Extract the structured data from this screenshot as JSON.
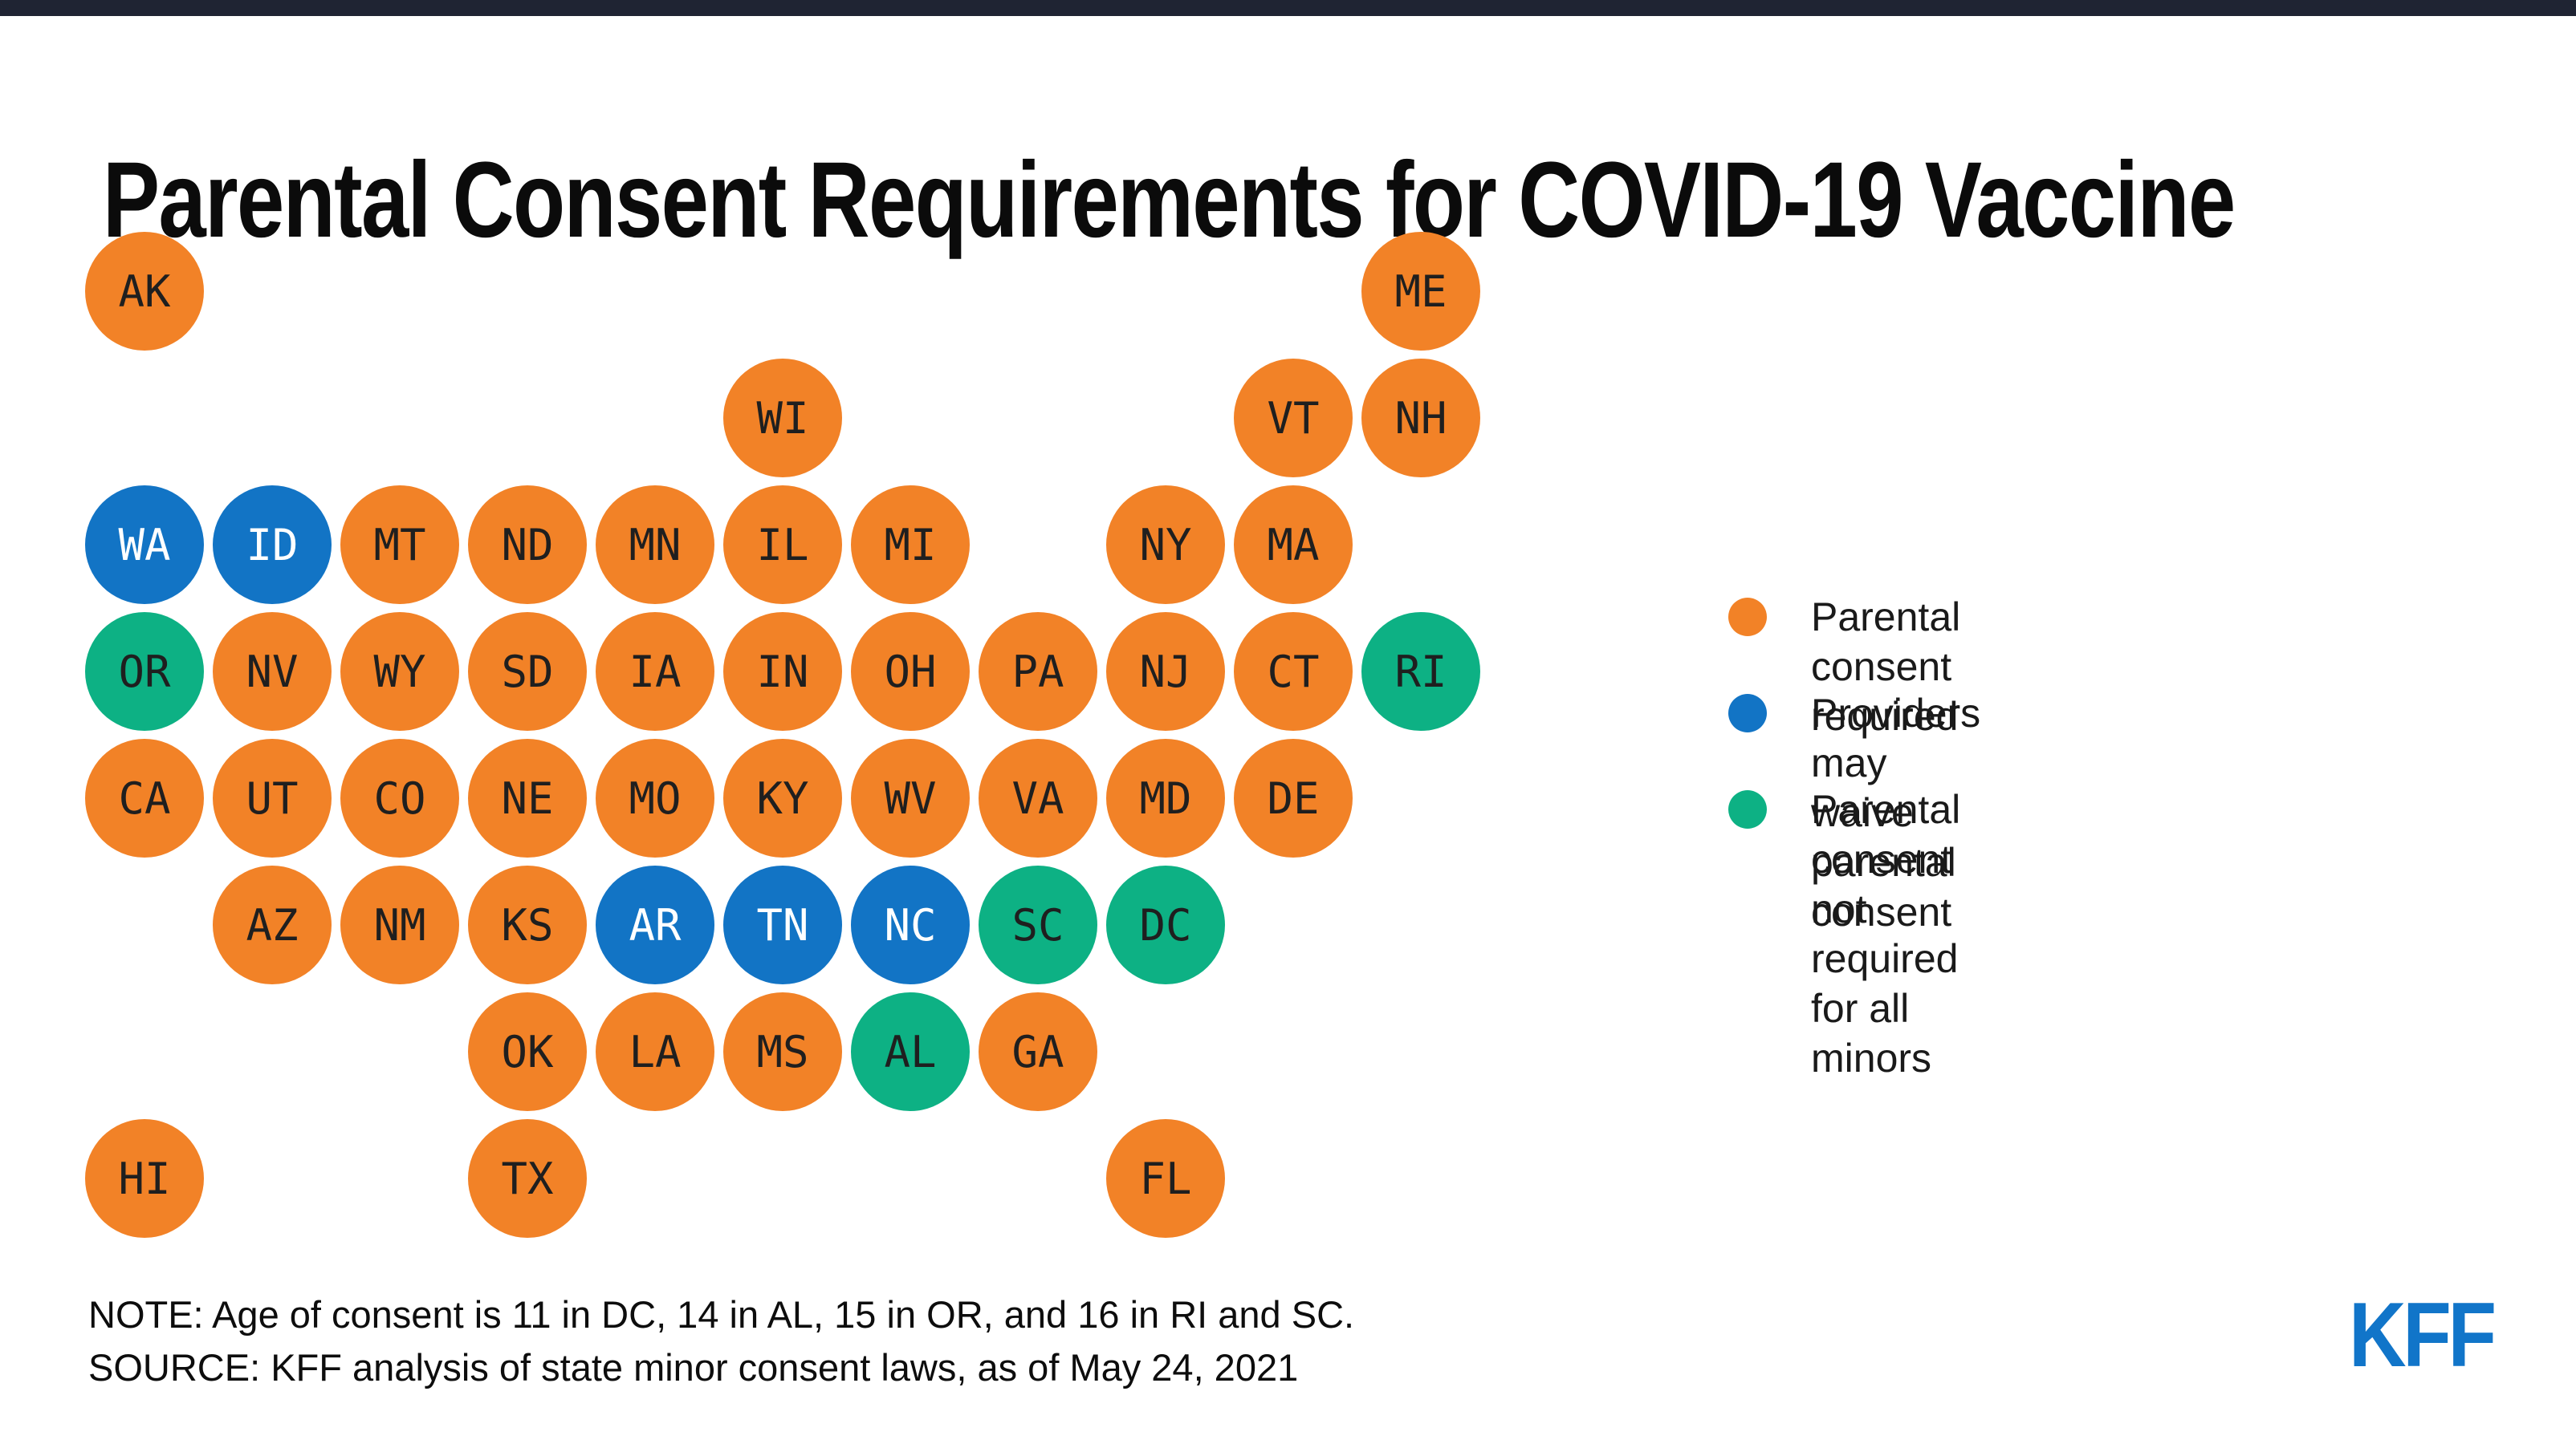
{
  "page": {
    "title": "Parental Consent Requirements for COVID-19 Vaccine"
  },
  "brand": {
    "logo_text": "KFF",
    "logo_color": "#1175C9",
    "top_bar_color": "#1F2433"
  },
  "legend": {
    "items": [
      {
        "label": "Parental consent required",
        "color": "#F28227"
      },
      {
        "label": "Providers may waive parental consent",
        "color": "#1274C5"
      },
      {
        "label": "Parental consent not required\nfor all minors",
        "color": "#0DB184"
      }
    ]
  },
  "notes": {
    "note": "NOTE: Age of consent is 11 in DC, 14 in AL, 15 in OR, and 16 in RI and SC.",
    "source": "SOURCE: KFF analysis of state minor consent laws, as of May 24, 2021"
  },
  "chart_data": {
    "type": "tile_grid_map",
    "title": "Parental Consent Requirements for COVID-19 Vaccine",
    "note": "Age of consent is 11 in DC, 14 in AL, 15 in OR, and 16 in RI and SC.",
    "source": "KFF analysis of state minor consent laws, as of May 24, 2021",
    "legend": [
      {
        "status": "required",
        "label": "Parental consent required"
      },
      {
        "status": "waive",
        "label": "Providers may waive parental consent"
      },
      {
        "status": "not_required",
        "label": "Parental consent not required for all minors"
      }
    ],
    "colors": {
      "required": "#F28227",
      "waive": "#1274C5",
      "not_required": "#0DB184"
    },
    "label_colors": {
      "required": "#1f1f1f",
      "waive": "#ffffff",
      "not_required": "#1f1f1f"
    },
    "states": [
      {
        "abbr": "AK",
        "row": 0,
        "col": 0,
        "status": "required"
      },
      {
        "abbr": "ME",
        "row": 0,
        "col": 10,
        "status": "required"
      },
      {
        "abbr": "WI",
        "row": 1,
        "col": 5,
        "status": "required"
      },
      {
        "abbr": "VT",
        "row": 1,
        "col": 9,
        "status": "required"
      },
      {
        "abbr": "NH",
        "row": 1,
        "col": 10,
        "status": "required"
      },
      {
        "abbr": "WA",
        "row": 2,
        "col": 0,
        "status": "waive"
      },
      {
        "abbr": "ID",
        "row": 2,
        "col": 1,
        "status": "waive"
      },
      {
        "abbr": "MT",
        "row": 2,
        "col": 2,
        "status": "required"
      },
      {
        "abbr": "ND",
        "row": 2,
        "col": 3,
        "status": "required"
      },
      {
        "abbr": "MN",
        "row": 2,
        "col": 4,
        "status": "required"
      },
      {
        "abbr": "IL",
        "row": 2,
        "col": 5,
        "status": "required"
      },
      {
        "abbr": "MI",
        "row": 2,
        "col": 6,
        "status": "required"
      },
      {
        "abbr": "NY",
        "row": 2,
        "col": 8,
        "status": "required"
      },
      {
        "abbr": "MA",
        "row": 2,
        "col": 9,
        "status": "required"
      },
      {
        "abbr": "OR",
        "row": 3,
        "col": 0,
        "status": "not_required"
      },
      {
        "abbr": "NV",
        "row": 3,
        "col": 1,
        "status": "required"
      },
      {
        "abbr": "WY",
        "row": 3,
        "col": 2,
        "status": "required"
      },
      {
        "abbr": "SD",
        "row": 3,
        "col": 3,
        "status": "required"
      },
      {
        "abbr": "IA",
        "row": 3,
        "col": 4,
        "status": "required"
      },
      {
        "abbr": "IN",
        "row": 3,
        "col": 5,
        "status": "required"
      },
      {
        "abbr": "OH",
        "row": 3,
        "col": 6,
        "status": "required"
      },
      {
        "abbr": "PA",
        "row": 3,
        "col": 7,
        "status": "required"
      },
      {
        "abbr": "NJ",
        "row": 3,
        "col": 8,
        "status": "required"
      },
      {
        "abbr": "CT",
        "row": 3,
        "col": 9,
        "status": "required"
      },
      {
        "abbr": "RI",
        "row": 3,
        "col": 10,
        "status": "not_required"
      },
      {
        "abbr": "CA",
        "row": 4,
        "col": 0,
        "status": "required"
      },
      {
        "abbr": "UT",
        "row": 4,
        "col": 1,
        "status": "required"
      },
      {
        "abbr": "CO",
        "row": 4,
        "col": 2,
        "status": "required"
      },
      {
        "abbr": "NE",
        "row": 4,
        "col": 3,
        "status": "required"
      },
      {
        "abbr": "MO",
        "row": 4,
        "col": 4,
        "status": "required"
      },
      {
        "abbr": "KY",
        "row": 4,
        "col": 5,
        "status": "required"
      },
      {
        "abbr": "WV",
        "row": 4,
        "col": 6,
        "status": "required"
      },
      {
        "abbr": "VA",
        "row": 4,
        "col": 7,
        "status": "required"
      },
      {
        "abbr": "MD",
        "row": 4,
        "col": 8,
        "status": "required"
      },
      {
        "abbr": "DE",
        "row": 4,
        "col": 9,
        "status": "required"
      },
      {
        "abbr": "AZ",
        "row": 5,
        "col": 1,
        "status": "required"
      },
      {
        "abbr": "NM",
        "row": 5,
        "col": 2,
        "status": "required"
      },
      {
        "abbr": "KS",
        "row": 5,
        "col": 3,
        "status": "required"
      },
      {
        "abbr": "AR",
        "row": 5,
        "col": 4,
        "status": "waive"
      },
      {
        "abbr": "TN",
        "row": 5,
        "col": 5,
        "status": "waive"
      },
      {
        "abbr": "NC",
        "row": 5,
        "col": 6,
        "status": "waive"
      },
      {
        "abbr": "SC",
        "row": 5,
        "col": 7,
        "status": "not_required"
      },
      {
        "abbr": "DC",
        "row": 5,
        "col": 8,
        "status": "not_required"
      },
      {
        "abbr": "OK",
        "row": 6,
        "col": 3,
        "status": "required"
      },
      {
        "abbr": "LA",
        "row": 6,
        "col": 4,
        "status": "required"
      },
      {
        "abbr": "MS",
        "row": 6,
        "col": 5,
        "status": "required"
      },
      {
        "abbr": "AL",
        "row": 6,
        "col": 6,
        "status": "not_required"
      },
      {
        "abbr": "GA",
        "row": 6,
        "col": 7,
        "status": "required"
      },
      {
        "abbr": "HI",
        "row": 7,
        "col": 0,
        "status": "required"
      },
      {
        "abbr": "TX",
        "row": 7,
        "col": 3,
        "status": "required"
      },
      {
        "abbr": "FL",
        "row": 7,
        "col": 8,
        "status": "required"
      }
    ],
    "layout": {
      "grid_columns": 11,
      "grid_rows": 8,
      "legend_position": "right"
    }
  }
}
